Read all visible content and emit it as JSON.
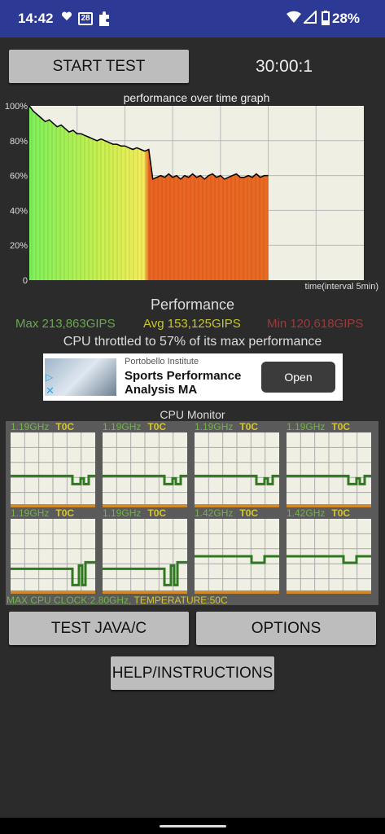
{
  "status_bar": {
    "time": "14:42",
    "calendar_badge": "28",
    "battery": "28%",
    "icons": [
      "heart-icon",
      "calendar-icon",
      "puzzle-icon",
      "wifi-icon",
      "signal-icon",
      "battery-icon"
    ]
  },
  "controls": {
    "start_label": "START TEST",
    "timer": "30:00:1",
    "java_label": "TEST JAVA/C",
    "options_label": "OPTIONS",
    "help_label": "HELP/INSTRUCTIONS"
  },
  "graph": {
    "title": "performance over time graph",
    "interval_label": "time(interval 5min)"
  },
  "chart_data": {
    "type": "line",
    "title": "performance over time graph",
    "xlabel": "time(interval 5min)",
    "ylabel": "",
    "ylim": [
      0,
      100
    ],
    "yticks": [
      "0",
      "20%",
      "40%",
      "60%",
      "80%",
      "100%"
    ],
    "grid": true,
    "x": [
      0,
      0.5,
      1,
      1.5,
      2,
      2.5,
      3,
      3.5,
      4,
      4.5,
      5,
      5.5,
      6,
      6.5,
      7,
      7.5,
      8,
      8.5,
      9,
      9.5,
      10,
      10.5,
      11,
      11.5,
      12,
      12.5,
      13,
      13.5,
      14,
      14.5,
      15,
      15.5,
      16,
      16.5,
      17,
      17.5,
      18,
      18.5,
      19,
      19.5,
      20,
      20.5,
      21,
      21.5,
      22,
      22.5,
      23,
      23.5,
      24,
      24.5,
      25,
      25.5,
      26,
      26.5,
      27,
      27.5,
      28,
      28.5,
      29,
      29.5,
      30
    ],
    "values": [
      100,
      97,
      95,
      93,
      91,
      92,
      90,
      88,
      89,
      87,
      85,
      86,
      84,
      84,
      83,
      82,
      81,
      80,
      81,
      80,
      79,
      78,
      78,
      77,
      77,
      76,
      75,
      76,
      75,
      74,
      75,
      58,
      59,
      60,
      59,
      61,
      59,
      60,
      58,
      60,
      59,
      61,
      59,
      60,
      58,
      60,
      61,
      59,
      60,
      58,
      59,
      60,
      61,
      59,
      59,
      60,
      59,
      61,
      59,
      60,
      60
    ],
    "series": [
      {
        "name": "performance",
        "color": "#000000"
      }
    ],
    "fill_note_colors": [
      "#7ef05a",
      "#f0f05a",
      "#e8611c"
    ]
  },
  "performance": {
    "title": "Performance",
    "max": "Max 213,863GIPS",
    "avg": "Avg 153,125GIPS",
    "min": "Min 120,618GIPS",
    "throttled": "CPU throttled to 57% of its max performance"
  },
  "ad": {
    "source": "Portobello Institute",
    "title": "Sports Performance Analysis MA",
    "cta": "Open"
  },
  "cpu_monitor": {
    "title": "CPU Monitor",
    "cores": [
      {
        "freq": "1.19GHz",
        "temp": "T0C",
        "level": 0.42,
        "dip": true
      },
      {
        "freq": "1.19GHz",
        "temp": "T0C",
        "level": 0.42,
        "dip": true
      },
      {
        "freq": "1.19GHz",
        "temp": "T0C",
        "level": 0.42,
        "dip": true
      },
      {
        "freq": "1.19GHz",
        "temp": "T0C",
        "level": 0.42,
        "dip": true
      },
      {
        "freq": "1.19GHz",
        "temp": "T0C",
        "level": 0.42,
        "dip": true
      },
      {
        "freq": "1.19GHz",
        "temp": "T0C",
        "level": 0.42,
        "dip": true
      },
      {
        "freq": "1.42GHz",
        "temp": "T0C",
        "level": 0.5,
        "dip": true
      },
      {
        "freq": "1.42GHz",
        "temp": "T0C",
        "level": 0.5,
        "dip": true
      }
    ],
    "max_clock": "MAX CPU CLOCK:2.80GHz,",
    "temperature": "TEMPERATURE:50C"
  },
  "colors": {
    "status_bar": "#2c3a95",
    "background": "#2b2b2b",
    "button": "#bdbdbd",
    "green": "#72b34a",
    "yellow": "#d6c72e",
    "orange": "#e8611c"
  }
}
